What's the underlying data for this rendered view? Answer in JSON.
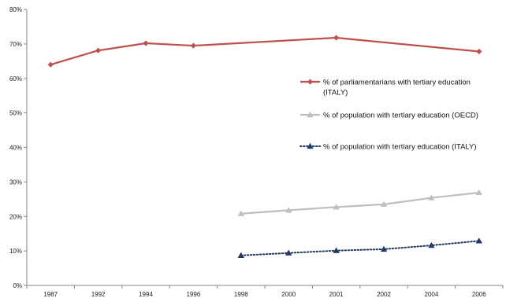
{
  "chart_data": {
    "type": "line",
    "categories": [
      "1987",
      "1992",
      "1994",
      "1996",
      "1998",
      "2000",
      "2001",
      "2002",
      "2004",
      "2006"
    ],
    "y_ticks": [
      "0%",
      "10%",
      "20%",
      "30%",
      "40%",
      "50%",
      "60%",
      "70%",
      "80%"
    ],
    "ylim": [
      0,
      80
    ],
    "grid": false,
    "legend_position": "right",
    "series": [
      {
        "name": "% of parliamentarians with tertiary education (ITALY)",
        "name_lines": [
          "% of parliamentarians with tertiary education",
          "(ITALY)"
        ],
        "values": [
          64.0,
          68.1,
          70.2,
          69.5,
          null,
          null,
          71.8,
          null,
          null,
          67.8
        ],
        "color": "#c0504d",
        "marker": "diamond",
        "line_style": "solid"
      },
      {
        "name": "% of population with tertiary education (OECD)",
        "name_lines": [
          "% of population with tertiary education (OECD)"
        ],
        "values": [
          null,
          null,
          null,
          null,
          20.8,
          21.8,
          22.7,
          23.5,
          25.4,
          26.9
        ],
        "color": "#bfbfbf",
        "marker": "triangle",
        "line_style": "solid"
      },
      {
        "name": "% of population with tertiary education (ITALY)",
        "name_lines": [
          "% of population with tertiary education (ITALY)"
        ],
        "values": [
          null,
          null,
          null,
          null,
          8.7,
          9.4,
          10.1,
          10.5,
          11.6,
          12.9
        ],
        "color": "#1f3864",
        "marker": "triangle",
        "line_style": "dotted"
      }
    ]
  }
}
